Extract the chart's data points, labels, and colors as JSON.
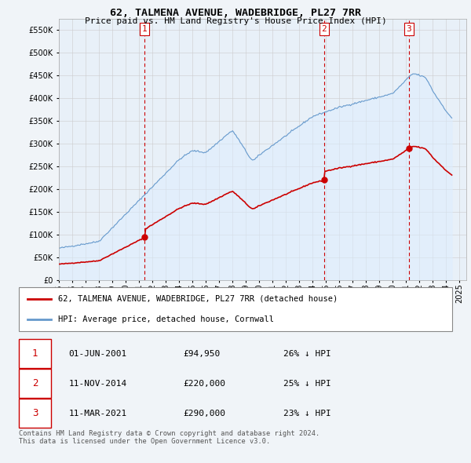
{
  "title": "62, TALMENA AVENUE, WADEBRIDGE, PL27 7RR",
  "subtitle": "Price paid vs. HM Land Registry's House Price Index (HPI)",
  "ylim": [
    0,
    575000
  ],
  "yticks": [
    0,
    50000,
    100000,
    150000,
    200000,
    250000,
    300000,
    350000,
    400000,
    450000,
    500000,
    550000
  ],
  "sale_dates_num": [
    2001.42,
    2014.86,
    2021.19
  ],
  "sale_prices": [
    94950,
    220000,
    290000
  ],
  "sale_labels": [
    "1",
    "2",
    "3"
  ],
  "legend_line1": "62, TALMENA AVENUE, WADEBRIDGE, PL27 7RR (detached house)",
  "legend_line2": "HPI: Average price, detached house, Cornwall",
  "table_rows": [
    [
      "1",
      "01-JUN-2001",
      "£94,950",
      "26% ↓ HPI"
    ],
    [
      "2",
      "11-NOV-2014",
      "£220,000",
      "25% ↓ HPI"
    ],
    [
      "3",
      "11-MAR-2021",
      "£290,000",
      "23% ↓ HPI"
    ]
  ],
  "footer": "Contains HM Land Registry data © Crown copyright and database right 2024.\nThis data is licensed under the Open Government Licence v3.0.",
  "line_color_red": "#cc0000",
  "line_color_blue": "#6699cc",
  "fill_color_blue": "#ddeeff",
  "vline_color": "#cc0000",
  "background_color": "#f0f4f8",
  "chart_bg": "#e8f0f8"
}
